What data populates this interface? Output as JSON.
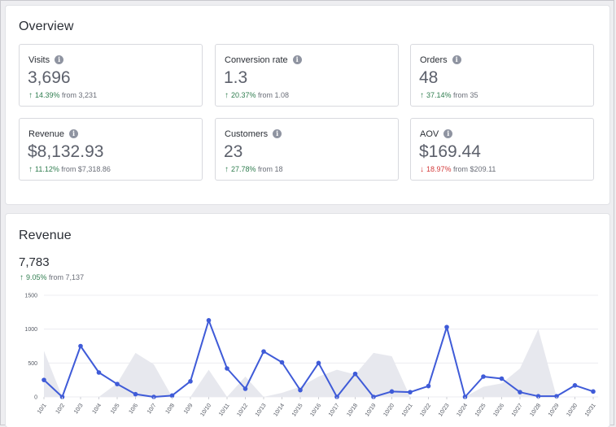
{
  "overview": {
    "title": "Overview",
    "metrics": [
      {
        "label": "Visits",
        "value": "3,696",
        "pct": "14.39%",
        "from": "from 3,231",
        "dir": "up"
      },
      {
        "label": "Conversion rate",
        "value": "1.3",
        "pct": "20.37%",
        "from": "from 1.08",
        "dir": "up"
      },
      {
        "label": "Orders",
        "value": "48",
        "pct": "37.14%",
        "from": "from 35",
        "dir": "up"
      },
      {
        "label": "Revenue",
        "value": "$8,132.93",
        "pct": "11.12%",
        "from": "from $7,318.86",
        "dir": "up"
      },
      {
        "label": "Customers",
        "value": "23",
        "pct": "27.78%",
        "from": "from 18",
        "dir": "up"
      },
      {
        "label": "AOV",
        "value": "$169.44",
        "pct": "18.97%",
        "from": "from $209.11",
        "dir": "down"
      }
    ]
  },
  "revenue": {
    "title": "Revenue",
    "total": "7,783",
    "pct": "9.05%",
    "from": "from 7,137"
  },
  "icons": {
    "info": "info-icon",
    "up": "arrow-up-icon",
    "down": "arrow-down-icon"
  },
  "colors": {
    "up": "#2f7d4f",
    "down": "#d33a3a",
    "line": "#3f5bd8",
    "area": "#e7e8ee"
  },
  "chart_data": {
    "type": "line",
    "x": [
      "10/1",
      "10/2",
      "10/3",
      "10/4",
      "10/5",
      "10/6",
      "10/7",
      "10/8",
      "10/9",
      "10/10",
      "10/11",
      "10/12",
      "10/13",
      "10/14",
      "10/15",
      "10/16",
      "10/17",
      "10/18",
      "10/19",
      "10/20",
      "10/21",
      "10/22",
      "10/23",
      "10/24",
      "10/25",
      "10/26",
      "10/27",
      "10/28",
      "10/29",
      "10/30",
      "10/31"
    ],
    "series": [
      {
        "role": "current",
        "values": [
          250,
          0,
          750,
          360,
          190,
          40,
          0,
          20,
          230,
          1130,
          420,
          120,
          670,
          510,
          100,
          500,
          0,
          340,
          0,
          80,
          70,
          160,
          1030,
          0,
          300,
          270,
          70,
          10,
          10,
          170,
          80
        ]
      },
      {
        "role": "previous",
        "values": [
          680,
          0,
          0,
          0,
          200,
          650,
          480,
          0,
          0,
          400,
          0,
          300,
          0,
          60,
          150,
          300,
          400,
          330,
          650,
          600,
          0,
          0,
          0,
          0,
          150,
          200,
          420,
          1000,
          0,
          0,
          0
        ]
      }
    ],
    "ylim": [
      0,
      1500
    ],
    "yticks": [
      0,
      500,
      1000,
      1500
    ],
    "grid": true
  }
}
